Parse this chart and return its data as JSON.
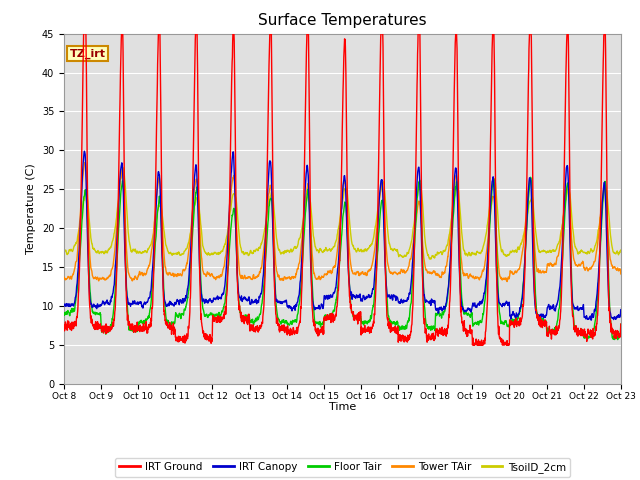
{
  "title": "Surface Temperatures",
  "ylabel": "Temperature (C)",
  "xlabel": "Time",
  "ylim": [
    0,
    45
  ],
  "annotation": "TZ_irt",
  "bg_color": "#e0e0e0",
  "series": {
    "IRT Ground": {
      "color": "#ff0000"
    },
    "IRT Canopy": {
      "color": "#0000cc"
    },
    "Floor Tair": {
      "color": "#00cc00"
    },
    "Tower TAir": {
      "color": "#ff8800"
    },
    "TsoilD_2cm": {
      "color": "#cccc00"
    }
  },
  "xtick_labels": [
    "Oct 8",
    "Oct 9",
    "Oct 10",
    "Oct 11",
    "Oct 12",
    "Oct 13",
    "Oct 14",
    "Oct 15",
    "Oct 16",
    "Oct 17",
    "Oct 18",
    "Oct 19",
    "Oct 20",
    "Oct 21",
    "Oct 22",
    "Oct 23"
  ],
  "num_days": 15,
  "points_per_day": 144
}
